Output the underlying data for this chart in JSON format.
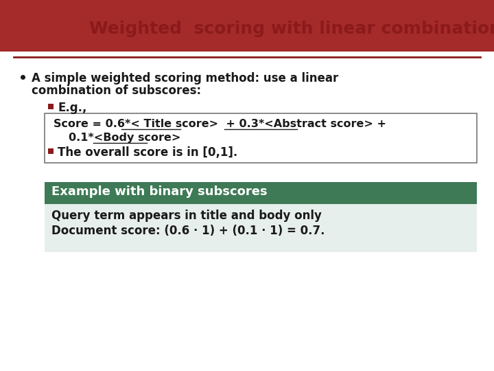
{
  "title": "Weighted  scoring with linear combination",
  "title_color": "#8B1A1A",
  "bg_color": "#FFFFFF",
  "header_arc_color": "#A52A2A",
  "divider_color": "#8B1A1A",
  "bullet_color": "#8B1A1A",
  "box_border_color": "#777777",
  "example_header": "Example with binary subscores",
  "example_header_bg": "#3E7A56",
  "example_header_color": "#FFFFFF",
  "example_body_bg": "#E6EFEB",
  "example_line1": "Query term appears in title and body only",
  "example_line2": "Document score: (0.6 · 1) + (0.1 · 1) = 0.7.",
  "example_text_color": "#1A1A1A"
}
